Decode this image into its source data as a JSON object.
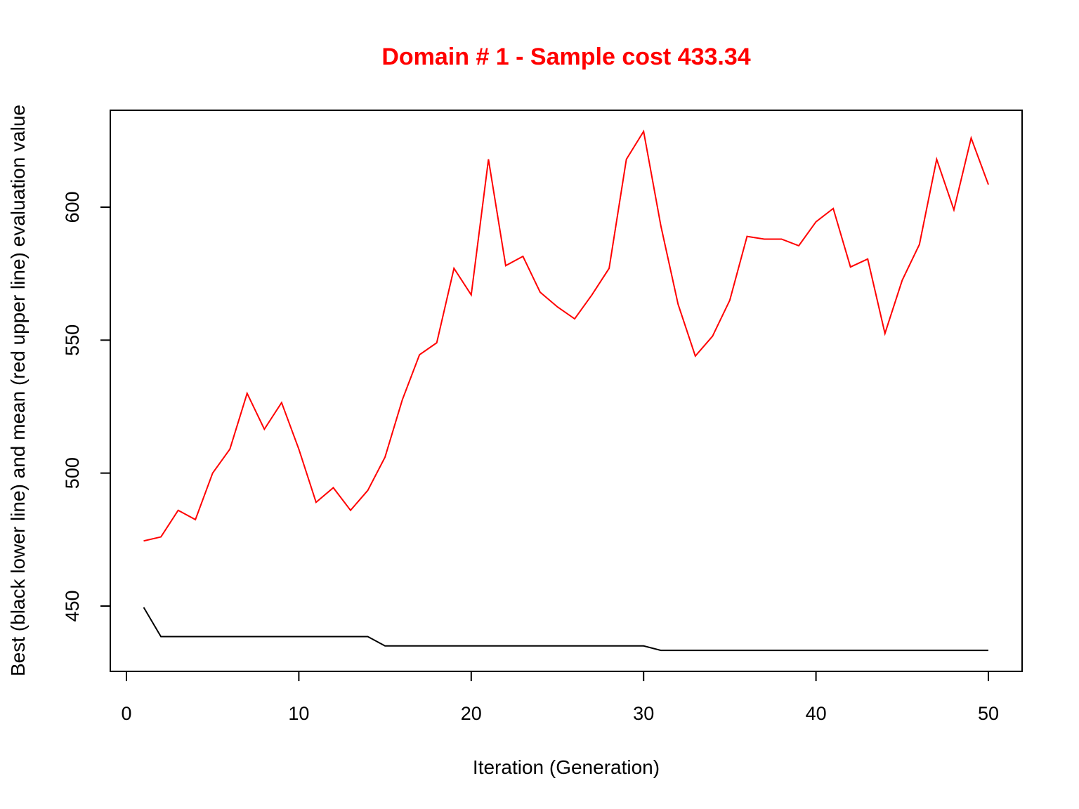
{
  "chart_data": {
    "type": "line",
    "title": "Domain # 1  - Sample cost 433.34",
    "xlabel": "Iteration (Generation)",
    "ylabel": "Best (black lower line) and mean (red upper line) evaluation value",
    "xlim": [
      0,
      50
    ],
    "ylim": [
      425,
      630
    ],
    "xticks": [
      0,
      10,
      20,
      30,
      40,
      50
    ],
    "yticks": [
      450,
      500,
      550,
      600
    ],
    "grid": false,
    "legend": "none",
    "x": [
      1,
      2,
      3,
      4,
      5,
      6,
      7,
      8,
      9,
      10,
      11,
      12,
      13,
      14,
      15,
      16,
      17,
      18,
      19,
      20,
      21,
      22,
      23,
      24,
      25,
      26,
      27,
      28,
      29,
      30,
      31,
      32,
      33,
      34,
      35,
      36,
      37,
      38,
      39,
      40,
      41,
      42,
      43,
      44,
      45,
      46,
      47,
      48,
      49,
      50
    ],
    "series": [
      {
        "color": "#ff0000",
        "values": [
          474.5,
          476,
          486,
          482.5,
          500,
          509,
          530,
          516.5,
          526.5,
          509,
          489,
          494.5,
          486,
          493.5,
          506,
          527.5,
          544.5,
          549,
          577,
          567,
          618,
          578,
          581.5,
          568,
          562.5,
          558,
          567,
          577,
          618,
          628.5,
          593,
          563.5,
          544,
          551.5,
          565,
          589,
          588,
          588,
          585.5,
          594.5,
          599.5,
          577.5,
          580.5,
          552.5,
          572.5,
          586,
          618,
          599,
          626,
          608.5
        ]
      },
      {
        "color": "#000000",
        "values": [
          449.5,
          438.5,
          438.5,
          438.5,
          438.5,
          438.5,
          438.5,
          438.5,
          438.5,
          438.5,
          438.5,
          438.5,
          438.5,
          438.5,
          435,
          435,
          435,
          435,
          435,
          435,
          435,
          435,
          435,
          435,
          435,
          435,
          435,
          435,
          435,
          435,
          433.34,
          433.34,
          433.34,
          433.34,
          433.34,
          433.34,
          433.34,
          433.34,
          433.34,
          433.34,
          433.34,
          433.34,
          433.34,
          433.34,
          433.34,
          433.34,
          433.34,
          433.34,
          433.34,
          433.34
        ]
      }
    ]
  },
  "colors": {
    "title": "#ff0000",
    "axis": "#000000",
    "background": "#ffffff"
  }
}
